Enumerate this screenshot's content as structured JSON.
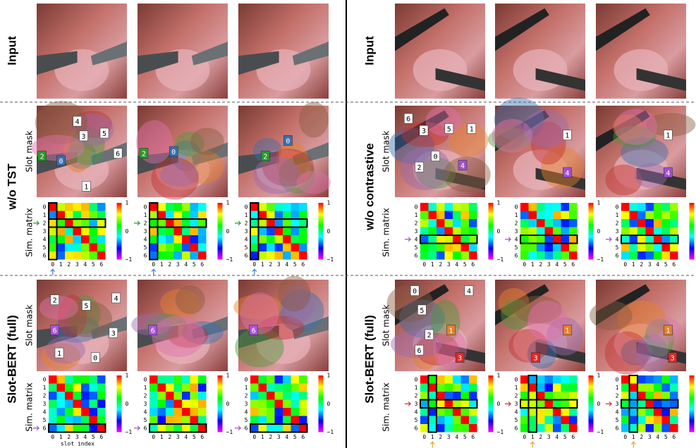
{
  "left_labels": {
    "input": "Input",
    "tst": "w/o TST",
    "full": "Slot-BERT (full)"
  },
  "right_labels": {
    "input": "Input",
    "contrastive": "w/o contrastive",
    "full": "Slot-BERT (full)"
  },
  "sub_labels": {
    "mask": "Slot mask",
    "sim": "Sim. matrix"
  },
  "slot_ticks": [
    "0",
    "1",
    "2",
    "3",
    "4",
    "5",
    "6"
  ],
  "colorbar_ticks": [
    "1",
    "0",
    "−1"
  ],
  "x_axis_label": "slot index",
  "slot_badges": {
    "left_tst": [
      [
        "4",
        "3",
        "5",
        "2",
        "0",
        "6",
        "1"
      ],
      [
        "2",
        "0"
      ],
      [
        "0",
        "2"
      ]
    ],
    "left_full": [
      [
        "2",
        "5",
        "4",
        "6",
        "3",
        "1",
        "0"
      ],
      [
        "6"
      ],
      [
        "6"
      ]
    ],
    "right_contrastive": [
      [
        "6",
        "3",
        "5",
        "1",
        "0",
        "2",
        "4"
      ],
      [
        "1",
        "4"
      ],
      [
        "1",
        "4"
      ]
    ],
    "right_full": [
      [
        "0",
        "4",
        "5",
        "1",
        "2",
        "6",
        "3"
      ],
      [
        "1",
        "3"
      ],
      [
        "1",
        "3"
      ]
    ]
  }
}
